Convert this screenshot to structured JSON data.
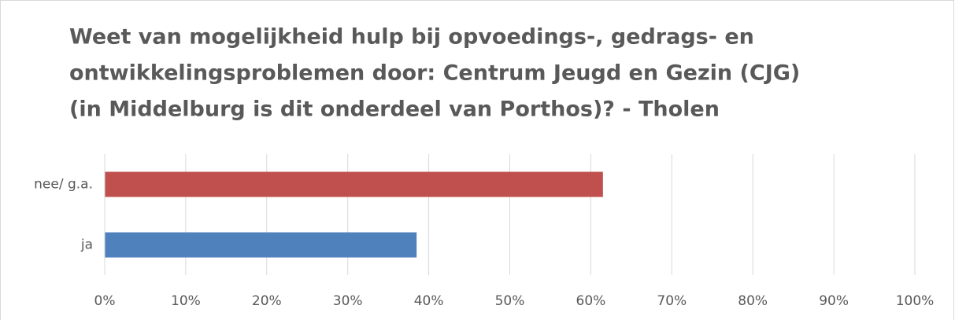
{
  "chart_data": {
    "type": "hbar",
    "title": [
      "Weet van mogelijkheid hulp bij opvoedings-, gedrags- en",
      "ontwikkelingsproblemen door: Centrum Jeugd en Gezin (CJG)",
      "(in Middelburg is dit onderdeel van Porthos)? - Tholen"
    ],
    "categories": [
      "ja",
      "nee/ g.a."
    ],
    "values": [
      38.5,
      61.5
    ],
    "colors": [
      "#4f81bd",
      "#c0504d"
    ],
    "xlim": [
      0,
      100
    ],
    "xticks": [
      {
        "value": 0,
        "label": "0%"
      },
      {
        "value": 10,
        "label": "10%"
      },
      {
        "value": 20,
        "label": "20%"
      },
      {
        "value": 30,
        "label": "30%"
      },
      {
        "value": 40,
        "label": "40%"
      },
      {
        "value": 50,
        "label": "50%"
      },
      {
        "value": 60,
        "label": "60%"
      },
      {
        "value": 70,
        "label": "70%"
      },
      {
        "value": 80,
        "label": "80%"
      },
      {
        "value": 90,
        "label": "90%"
      },
      {
        "value": 100,
        "label": "100%"
      }
    ],
    "grid": true
  }
}
